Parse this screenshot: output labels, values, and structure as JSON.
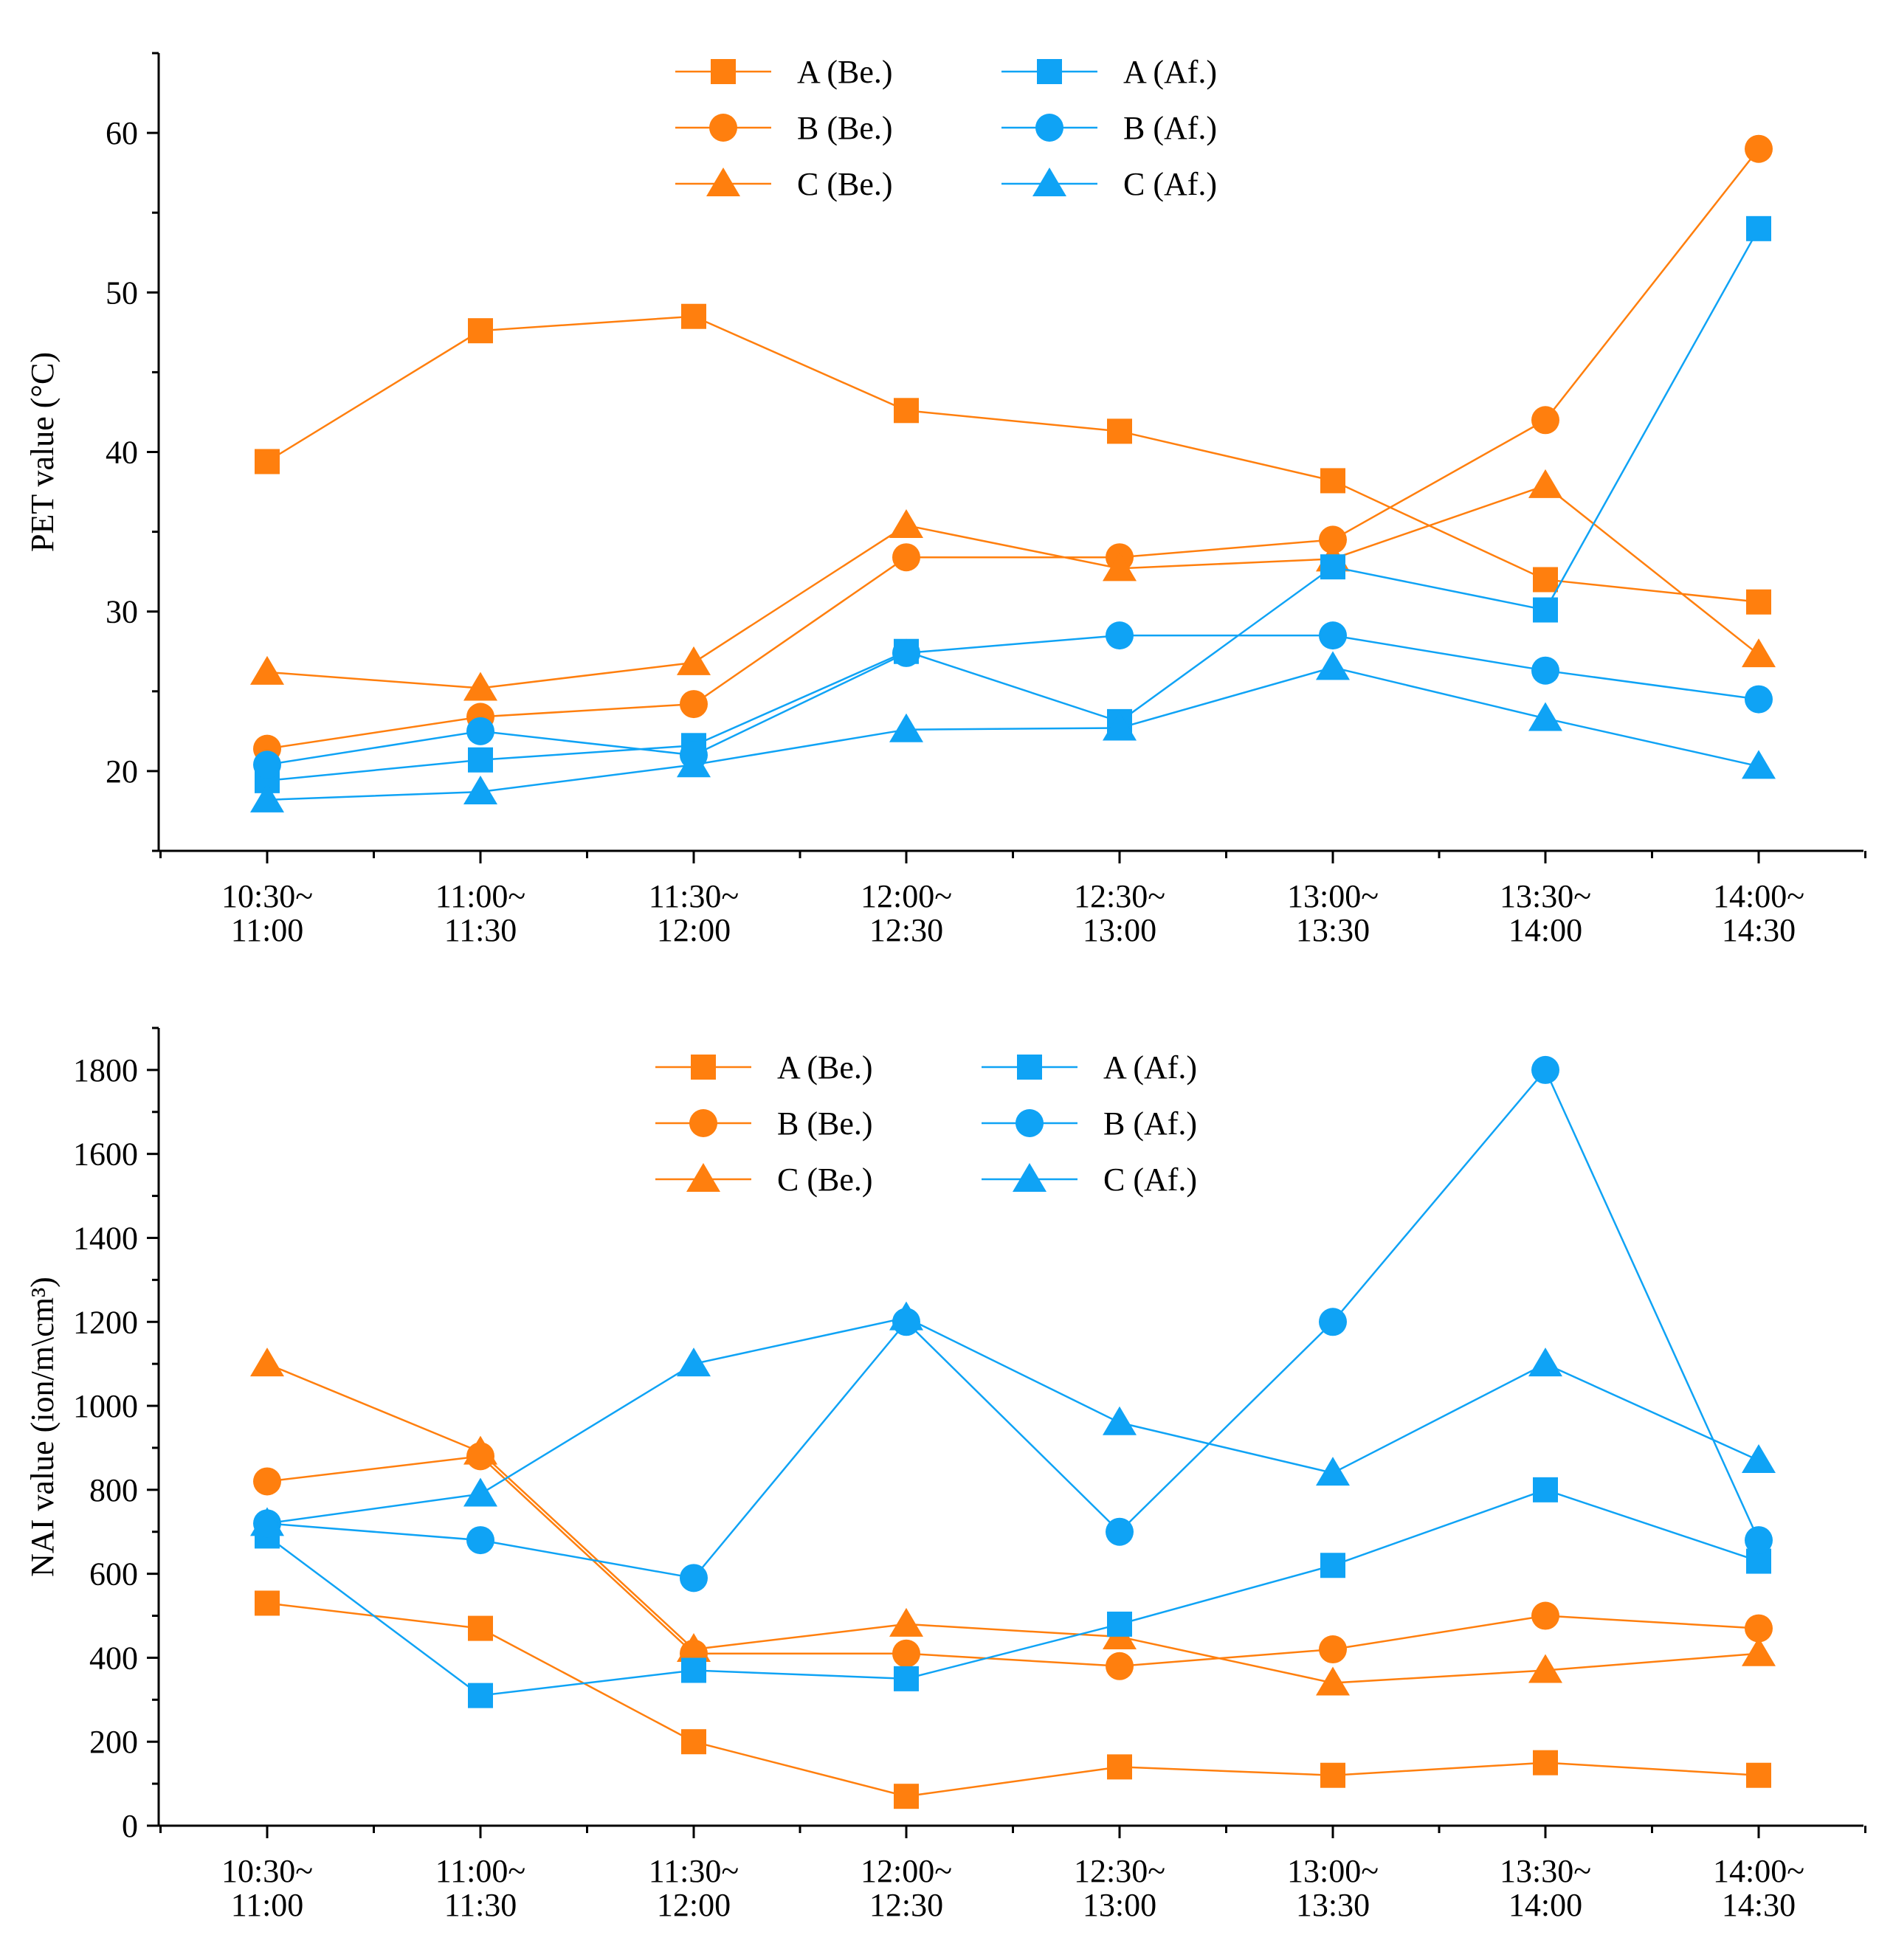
{
  "colors": {
    "before": "#FF7F0E",
    "after": "#0FA3F5",
    "axis": "#000000"
  },
  "chart_data": [
    {
      "type": "line",
      "ylabel": "PET value (°C)",
      "ylim": [
        15,
        65
      ],
      "yticks": [
        20,
        30,
        40,
        50,
        60
      ],
      "categories": [
        [
          "10:30~",
          "11:00"
        ],
        [
          "11:00~",
          "11:30"
        ],
        [
          "11:30~",
          "12:00"
        ],
        [
          "12:00~",
          "12:30"
        ],
        [
          "12:30~",
          "13:00"
        ],
        [
          "13:00~",
          "13:30"
        ],
        [
          "13:30~",
          "14:00"
        ],
        [
          "14:00~",
          "14:30"
        ]
      ],
      "legend_position": "top-center",
      "series": [
        {
          "name": "A (Be.)",
          "group": "before",
          "marker": "square",
          "values": [
            39.4,
            47.6,
            48.5,
            42.6,
            41.3,
            38.2,
            32.0,
            30.6
          ]
        },
        {
          "name": "B (Be.)",
          "group": "before",
          "marker": "circle",
          "values": [
            21.4,
            23.4,
            24.2,
            33.4,
            33.4,
            34.5,
            42.0,
            59.0
          ]
        },
        {
          "name": "C (Be.)",
          "group": "before",
          "marker": "triangle",
          "values": [
            26.2,
            25.2,
            26.8,
            35.4,
            32.7,
            33.3,
            37.9,
            27.3
          ]
        },
        {
          "name": "A (Af.)",
          "group": "after",
          "marker": "square",
          "values": [
            19.4,
            20.7,
            21.6,
            27.5,
            23.1,
            32.8,
            30.1,
            54.0
          ]
        },
        {
          "name": "B (Af.)",
          "group": "after",
          "marker": "circle",
          "values": [
            20.4,
            22.5,
            21.0,
            27.4,
            28.5,
            28.5,
            26.3,
            24.5
          ]
        },
        {
          "name": "C (Af.)",
          "group": "after",
          "marker": "triangle",
          "values": [
            18.2,
            18.7,
            20.4,
            22.6,
            22.7,
            26.5,
            23.3,
            20.3
          ]
        }
      ]
    },
    {
      "type": "line",
      "ylabel": "NAI value (ion/m\\cm³)",
      "ylim": [
        0,
        1900
      ],
      "yticks": [
        0,
        200,
        400,
        600,
        800,
        1000,
        1200,
        1400,
        1600,
        1800
      ],
      "categories": [
        [
          "10:30~",
          "11:00"
        ],
        [
          "11:00~",
          "11:30"
        ],
        [
          "11:30~",
          "12:00"
        ],
        [
          "12:00~",
          "12:30"
        ],
        [
          "12:30~",
          "13:00"
        ],
        [
          "13:00~",
          "13:30"
        ],
        [
          "13:30~",
          "14:00"
        ],
        [
          "14:00~",
          "14:30"
        ]
      ],
      "legend_position": "top-center",
      "series": [
        {
          "name": "A (Be.)",
          "group": "before",
          "marker": "square",
          "values": [
            530,
            470,
            200,
            70,
            140,
            120,
            150,
            120
          ]
        },
        {
          "name": "B (Be.)",
          "group": "before",
          "marker": "circle",
          "values": [
            820,
            880,
            410,
            410,
            380,
            420,
            500,
            470
          ]
        },
        {
          "name": "C (Be.)",
          "group": "before",
          "marker": "triangle",
          "values": [
            1100,
            890,
            420,
            480,
            450,
            340,
            370,
            410
          ]
        },
        {
          "name": "A (Af.)",
          "group": "after",
          "marker": "square",
          "values": [
            690,
            310,
            370,
            350,
            480,
            620,
            800,
            630
          ]
        },
        {
          "name": "B (Af.)",
          "group": "after",
          "marker": "circle",
          "values": [
            720,
            680,
            590,
            1200,
            700,
            1200,
            1800,
            680
          ]
        },
        {
          "name": "C (Af.)",
          "group": "after",
          "marker": "triangle",
          "values": [
            720,
            790,
            1100,
            1210,
            960,
            840,
            1100,
            870
          ]
        }
      ]
    }
  ]
}
